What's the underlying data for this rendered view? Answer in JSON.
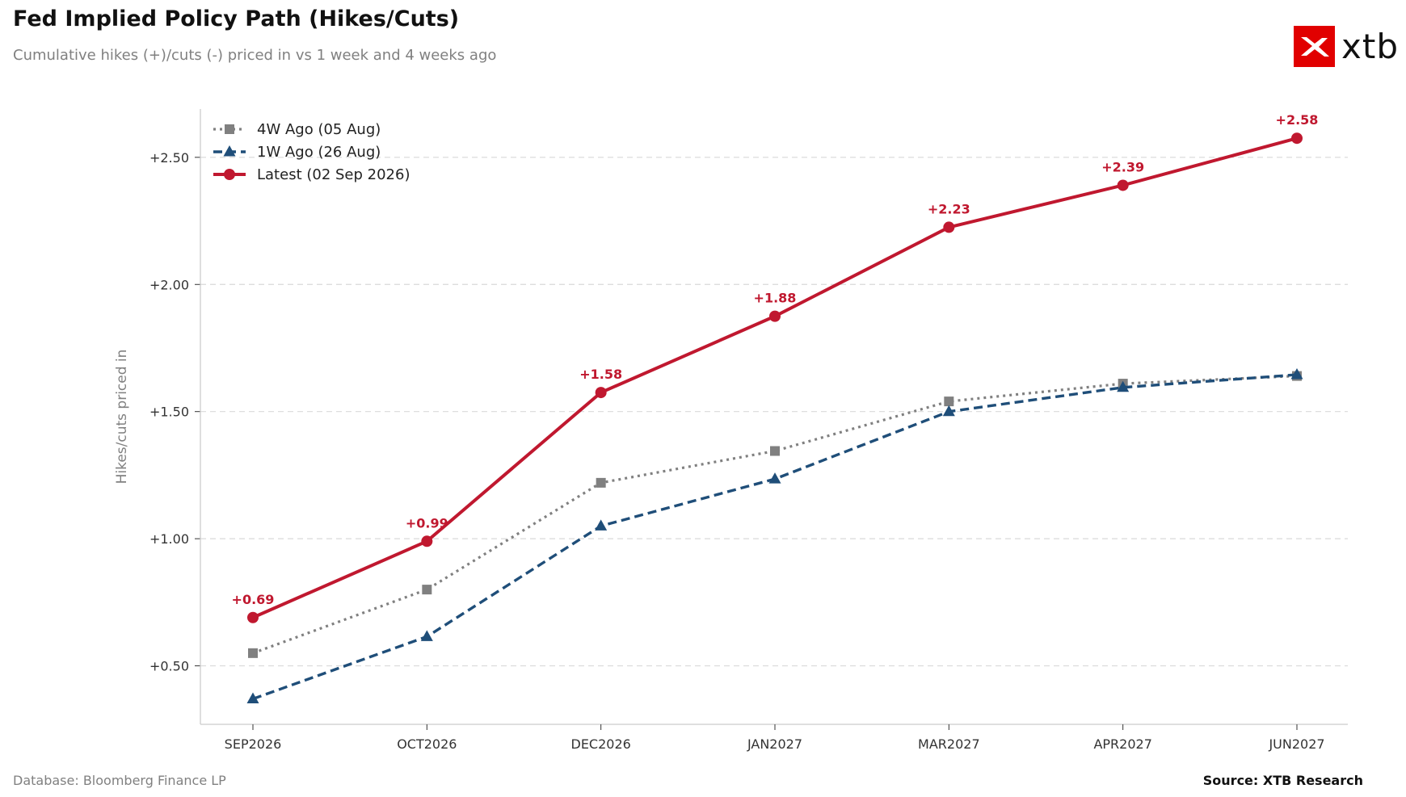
{
  "header": {
    "title": "Fed Implied Policy Path (Hikes/Cuts)",
    "subtitle": "Cumulative hikes (+)/cuts (-) priced in vs 1 week and 4 weeks ago"
  },
  "brand": {
    "logo_text": "xtb",
    "logo_icon": "xtb-x-icon",
    "logo_color": "#e10000"
  },
  "footer": {
    "database": "Database: Bloomberg Finance LP",
    "source": "Source: XTB Research"
  },
  "chart_data": {
    "type": "line",
    "title": "Fed Implied Policy Path (Hikes/Cuts)",
    "subtitle": "Cumulative hikes (+)/cuts (-) priced in vs 1 week and 4 weeks ago",
    "xlabel": "",
    "ylabel": "Hikes/cuts priced in",
    "categories": [
      "SEP2026",
      "OCT2026",
      "DEC2026",
      "JAN2027",
      "MAR2027",
      "APR2027",
      "JUN2027"
    ],
    "ylim": [
      0.27,
      2.69
    ],
    "yticks": [
      0.5,
      1.0,
      1.5,
      2.0,
      2.5
    ],
    "ytick_labels": [
      "+0.50",
      "+1.00",
      "+1.50",
      "+2.00",
      "+2.50"
    ],
    "grid": "horizontal dashed",
    "legend_position": "top-left",
    "series": [
      {
        "name": "4W Ago (05 Aug)",
        "values": [
          0.55,
          0.8,
          1.22,
          1.345,
          1.54,
          1.61,
          1.64
        ],
        "color": "#808080",
        "line_style": "dotted",
        "marker": "square"
      },
      {
        "name": "1W Ago (26 Aug)",
        "values": [
          0.37,
          0.615,
          1.05,
          1.235,
          1.5,
          1.595,
          1.645
        ],
        "color": "#1f4e79",
        "line_style": "dashed",
        "marker": "triangle"
      },
      {
        "name": "Latest (02 Sep 2026)",
        "values": [
          0.69,
          0.99,
          1.575,
          1.875,
          2.225,
          2.39,
          2.575
        ],
        "color": "#c0182f",
        "line_style": "solid",
        "marker": "circle",
        "data_labels": [
          "+0.69",
          "+0.99",
          "+1.58",
          "+1.88",
          "+2.23",
          "+2.39",
          "+2.58"
        ]
      }
    ]
  }
}
